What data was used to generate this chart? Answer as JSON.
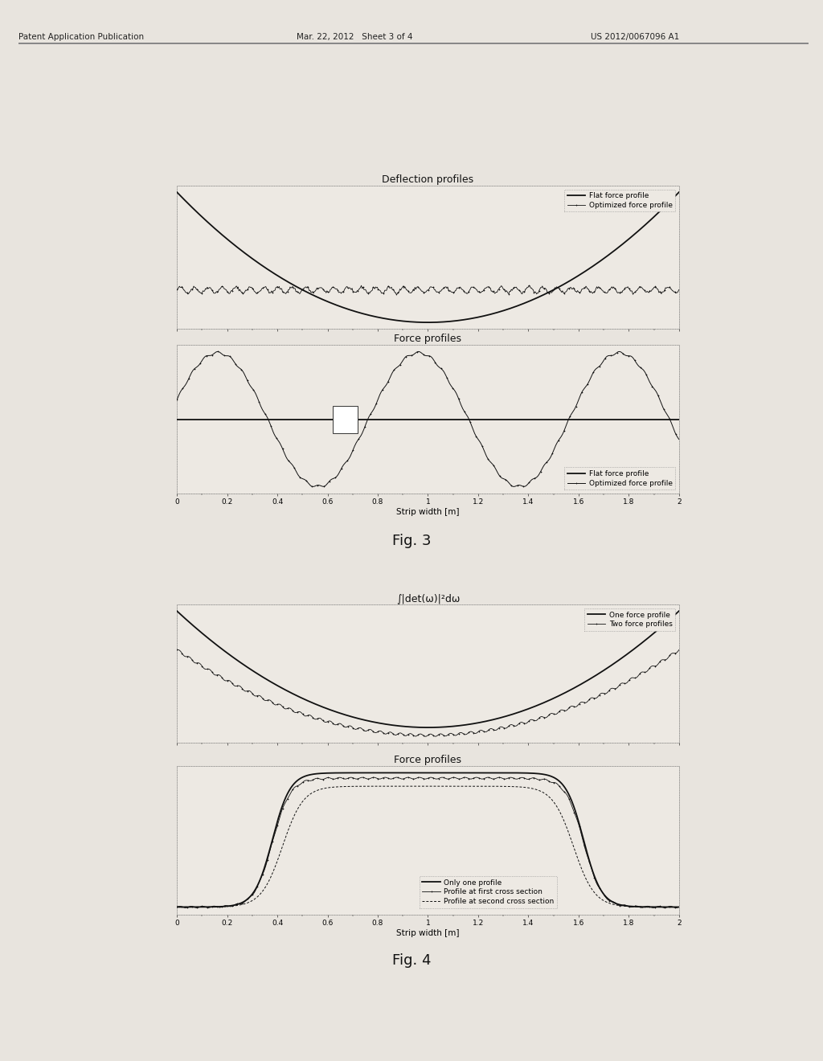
{
  "fig3_title1": "Deflection profiles",
  "fig3_title2": "Force profiles",
  "fig3_xlabel": "Strip width [m]",
  "fig3_legend1": [
    "Flat force profile",
    "Optimized force profile"
  ],
  "fig3_legend2": [
    "Flat force profile",
    "Optimized force profile"
  ],
  "fig4_title1": "∫|det(ω)|²dω",
  "fig4_title2": "Force profiles",
  "fig4_xlabel": "Strip width [m]",
  "fig4_legend1": [
    "One force profile",
    "Two force profiles"
  ],
  "fig4_legend2": [
    "Only one profile",
    "Profile at first cross section",
    "Profile at second cross section"
  ],
  "fig_label3": "Fig. 3",
  "fig_label4": "Fig. 4",
  "x_ticks": [
    0,
    0.2,
    0.4,
    0.6,
    0.8,
    1,
    1.2,
    1.4,
    1.6,
    1.8,
    2
  ],
  "bg_color": "#e8e4de",
  "plot_bg": "#ede9e3",
  "header_color": "#222222"
}
